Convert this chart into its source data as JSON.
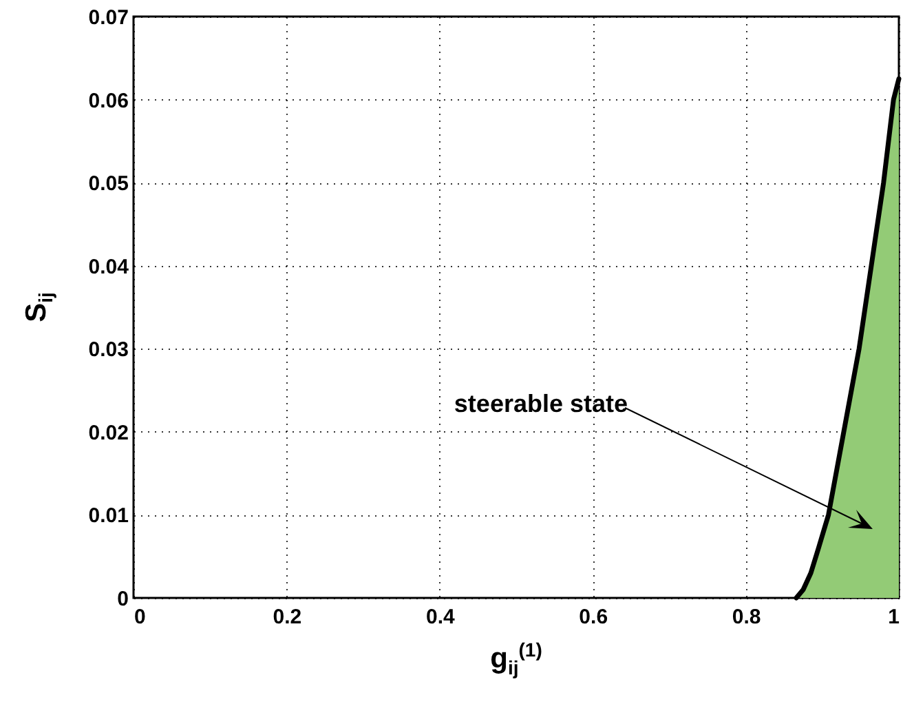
{
  "chart_data": {
    "type": "area",
    "xlabel": "g$_{ij}$$^{(1)}$",
    "ylabel": "S$_{ij}$",
    "xlim": [
      0,
      1
    ],
    "ylim": [
      0,
      0.07
    ],
    "xticks": [
      0,
      0.2,
      0.4,
      0.6,
      0.8,
      1
    ],
    "yticks": [
      0,
      0.01,
      0.02,
      0.03,
      0.04,
      0.05,
      0.06,
      0.07
    ],
    "grid": true,
    "series": [
      {
        "color": "#93cb76",
        "x": [
          0.866,
          0.875,
          0.885,
          0.895,
          0.908,
          0.928,
          0.948,
          0.964,
          0.98,
          0.993,
          1
        ],
        "values": [
          0,
          0.001,
          0.003,
          0.006,
          0.01,
          0.02,
          0.03,
          0.04,
          0.05,
          0.06,
          0.0625
        ]
      }
    ],
    "annotations": [
      "steerable state"
    ]
  }
}
